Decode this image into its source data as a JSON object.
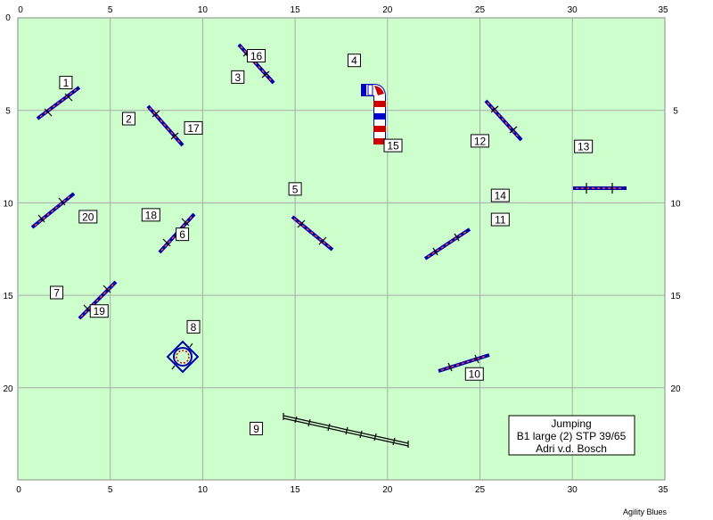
{
  "course": {
    "axis": {
      "x_ticks": [
        "0",
        "5",
        "10",
        "15",
        "20",
        "25",
        "30",
        "35"
      ],
      "y_ticks": [
        "0",
        "5",
        "10",
        "15",
        "20"
      ],
      "x_bottom_ticks": [
        "0",
        "5",
        "10",
        "15",
        "20",
        "25",
        "30",
        "35"
      ]
    },
    "numbers": [
      {
        "label": "1",
        "x": 2.6,
        "y": 3.5
      },
      {
        "label": "2",
        "x": 6.0,
        "y": 5.45
      },
      {
        "label": "3",
        "x": 11.9,
        "y": 3.2
      },
      {
        "label": "4",
        "x": 18.2,
        "y": 2.3
      },
      {
        "label": "5",
        "x": 15.0,
        "y": 9.25
      },
      {
        "label": "6",
        "x": 8.9,
        "y": 11.7
      },
      {
        "label": "7",
        "x": 2.1,
        "y": 14.85
      },
      {
        "label": "8",
        "x": 9.5,
        "y": 16.7
      },
      {
        "label": "9",
        "x": 12.9,
        "y": 22.2
      },
      {
        "label": "10",
        "x": 24.7,
        "y": 19.25
      },
      {
        "label": "11",
        "x": 26.1,
        "y": 10.9
      },
      {
        "label": "12",
        "x": 25.0,
        "y": 6.65
      },
      {
        "label": "13",
        "x": 30.6,
        "y": 6.95
      },
      {
        "label": "14",
        "x": 26.1,
        "y": 9.6
      },
      {
        "label": "15",
        "x": 20.3,
        "y": 6.9
      },
      {
        "label": "16",
        "x": 12.9,
        "y": 2.05
      },
      {
        "label": "17",
        "x": 9.5,
        "y": 5.95
      },
      {
        "label": "18",
        "x": 7.2,
        "y": 10.65
      },
      {
        "label": "19",
        "x": 4.4,
        "y": 15.85
      },
      {
        "label": "20",
        "x": 3.8,
        "y": 10.75
      }
    ],
    "info_lines": [
      "Jumping",
      "B1 large (2) STP 39/65",
      "Adri v.d. Bosch"
    ],
    "credit": "Agility Blues",
    "colors": {
      "field": "#ccffcc",
      "grid": "#aaaaaa",
      "bar": "#0000aa",
      "pole": "#cc0000"
    }
  }
}
